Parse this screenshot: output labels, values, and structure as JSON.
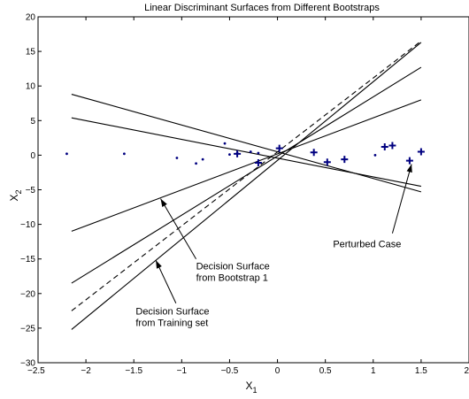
{
  "chart_data": {
    "type": "scatter",
    "title": "Linear Discriminant Surfaces from Different Bootstraps",
    "xlabel": {
      "main": "X",
      "sub": "1"
    },
    "ylabel": {
      "main": "X",
      "sub": "2"
    },
    "xlim": [
      -2.5,
      2
    ],
    "ylim": [
      -30,
      20
    ],
    "xticks": [
      -2.5,
      -2,
      -1.5,
      -1,
      -0.5,
      0,
      0.5,
      1,
      1.5,
      2
    ],
    "xtick_labels": [
      "−2.5",
      "−2",
      "−1.5",
      "−1",
      "−0.5",
      "0",
      "0.5",
      "1",
      "1.5",
      "2"
    ],
    "yticks": [
      -30,
      -25,
      -20,
      -15,
      -10,
      -5,
      0,
      5,
      10,
      15,
      20
    ],
    "ytick_labels": [
      "−30",
      "−25",
      "−20",
      "−15",
      "−10",
      "−5",
      "0",
      "5",
      "10",
      "15",
      "20"
    ],
    "grid": false,
    "colors": {
      "points": "#000080",
      "lines": "#000000"
    },
    "series": [
      {
        "marker": "dot",
        "points": [
          [
            -2.2,
            0.2
          ],
          [
            -1.6,
            0.2
          ],
          [
            -1.05,
            -0.4
          ],
          [
            -0.85,
            -1.2
          ],
          [
            -0.78,
            -0.6
          ],
          [
            -0.55,
            1.7
          ],
          [
            -0.5,
            0.1
          ],
          [
            -0.42,
            0.3
          ],
          [
            -0.28,
            0.5
          ],
          [
            -0.2,
            0.3
          ],
          [
            1.02,
            0.0
          ]
        ]
      },
      {
        "marker": "plus",
        "points": [
          [
            -0.42,
            0.2
          ],
          [
            -0.2,
            -1.1
          ],
          [
            0.02,
            1.0
          ],
          [
            0.38,
            0.4
          ],
          [
            0.52,
            -1.0
          ],
          [
            0.7,
            -0.6
          ],
          [
            1.12,
            1.2
          ],
          [
            1.2,
            1.4
          ],
          [
            1.38,
            -0.8
          ],
          [
            1.5,
            0.5
          ]
        ]
      }
    ],
    "lines": [
      {
        "style": "solid",
        "x": [
          -2.15,
          1.5
        ],
        "y": [
          8.8,
          -5.3
        ]
      },
      {
        "style": "solid",
        "x": [
          -2.15,
          1.5
        ],
        "y": [
          5.4,
          -4.5
        ]
      },
      {
        "style": "solid",
        "x": [
          -2.15,
          1.5
        ],
        "y": [
          -11.0,
          8.0
        ]
      },
      {
        "style": "solid",
        "x": [
          -2.15,
          1.5
        ],
        "y": [
          -18.5,
          12.7
        ]
      },
      {
        "style": "solid",
        "x": [
          -2.15,
          1.5
        ],
        "y": [
          -25.2,
          16.3
        ]
      },
      {
        "style": "dashed",
        "x": [
          -2.15,
          1.5
        ],
        "y": [
          -22.5,
          16.5
        ]
      }
    ],
    "annotations": [
      {
        "lines": [
          "Perturbed Case"
        ],
        "text_at": [
          0.58,
          -13.3
        ],
        "arrow_from": [
          1.2,
          -11.3
        ],
        "arrow_to": [
          1.4,
          -1.3
        ]
      },
      {
        "lines": [
          "Decision Surface",
          "from Bootstrap 1"
        ],
        "text_at": [
          -0.85,
          -16.5
        ],
        "arrow_from": [
          -0.85,
          -15.0
        ],
        "arrow_to": [
          -1.22,
          -6.3
        ]
      },
      {
        "lines": [
          "Decision Surface",
          "from Training set"
        ],
        "text_at": [
          -1.48,
          -23.0
        ],
        "arrow_from": [
          -1.06,
          -21.4
        ],
        "arrow_to": [
          -1.27,
          -15.2
        ]
      }
    ]
  }
}
